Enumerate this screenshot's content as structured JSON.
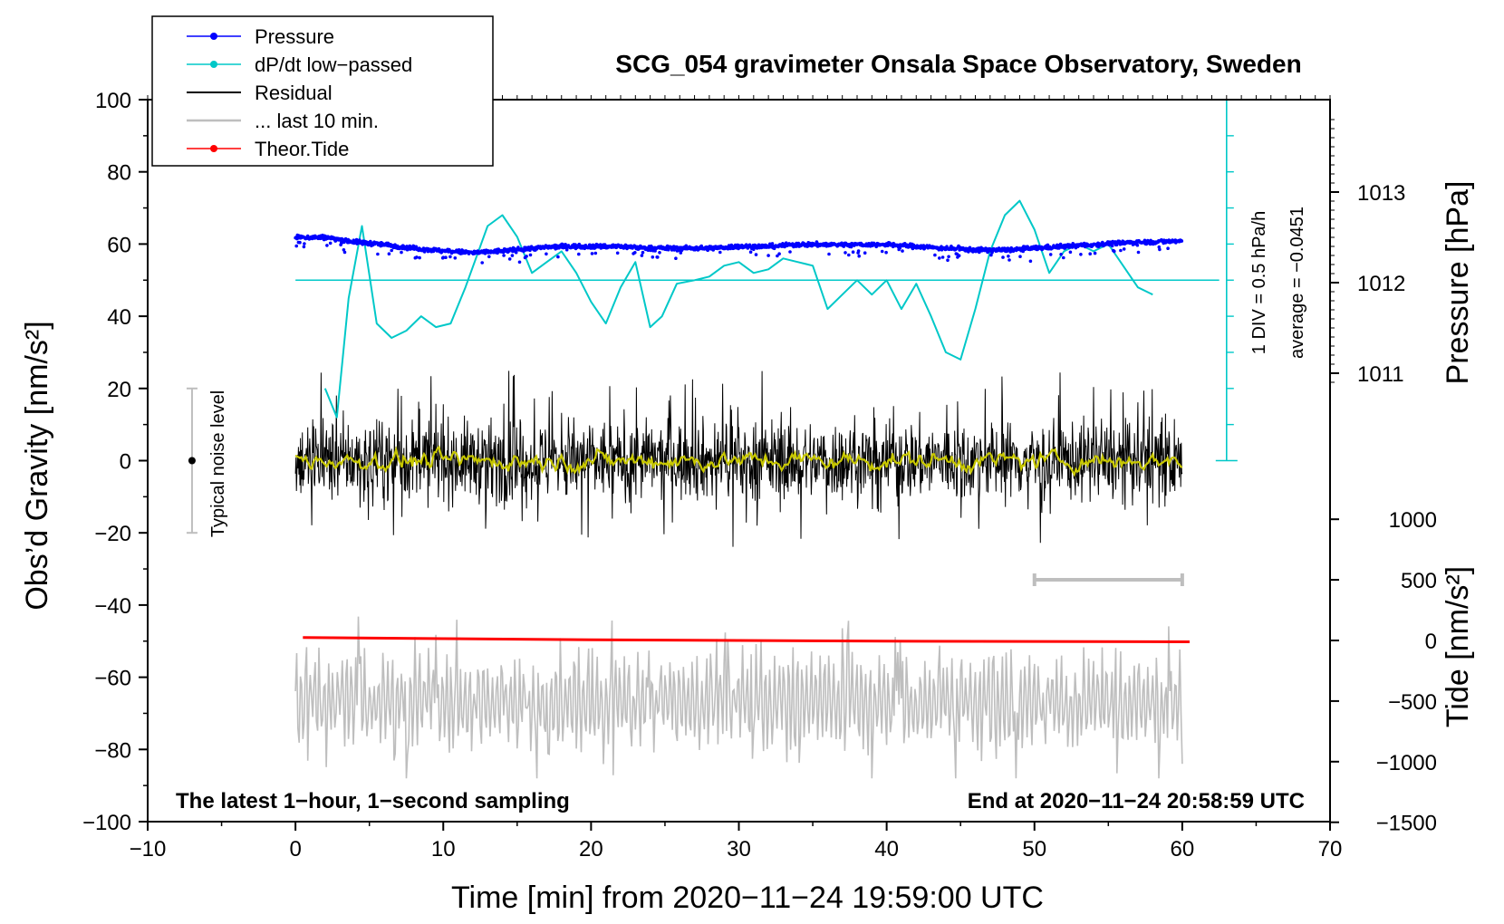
{
  "chart_data": {
    "type": "line",
    "title": "SCG_054 gravimeter Onsala Space Observatory, Sweden",
    "xlabel": "Time [min] from 2020−11−24 19:59:00 UTC",
    "xlim": [
      -10,
      70
    ],
    "x_ticks": [
      -10,
      0,
      10,
      20,
      30,
      40,
      50,
      60,
      70
    ],
    "x_tick_labels": [
      "−10",
      "0",
      "10",
      "20",
      "30",
      "40",
      "50",
      "60",
      "70"
    ],
    "left_axis": {
      "label": "Obs’d Gravity [nm/s²]",
      "ylim": [
        -100,
        100
      ],
      "ticks": [
        100,
        80,
        60,
        40,
        20,
        0,
        -20,
        -40,
        -60,
        -80,
        -100
      ],
      "tick_labels": [
        "100",
        "80",
        "60",
        "40",
        "20",
        "0",
        "−20",
        "−40",
        "−60",
        "−80",
        "−100"
      ]
    },
    "right_axis_pressure": {
      "label": "Pressure [hPa]",
      "ticks": [
        1013,
        1012,
        1011
      ],
      "tick_labels": [
        "1013",
        "1012",
        "1011"
      ]
    },
    "right_axis_tide": {
      "label": "Tide [nm/s²]",
      "ticks": [
        1000,
        500,
        0,
        -500,
        -1000,
        -1500
      ],
      "tick_labels": [
        "1000",
        "500",
        "0",
        "−500",
        "−1000",
        "−1500"
      ]
    },
    "legend": [
      {
        "label": "Pressure",
        "color": "#0000ff",
        "marker": true
      },
      {
        "label": "dP/dt low−passed",
        "color": "#00c8c8",
        "marker": true
      },
      {
        "label": "Residual",
        "color": "#000000",
        "marker": false
      },
      {
        "label": "... last 10 min.",
        "color": "#bebebe",
        "marker": false
      },
      {
        "label": "Theor.Tide",
        "color": "#ff0000",
        "marker": true
      }
    ],
    "noise_level": {
      "label": "Typical noise level",
      "x": -7,
      "center": 0,
      "half_range": 20
    },
    "dpdt_annotation": {
      "line1": "1 DIV = 0.5 hPa/h",
      "line2": "average = −0.0451"
    },
    "bottom_left_note": "The latest 1−hour, 1−second sampling",
    "bottom_right_note": "End at 2020−11−24 20:58:59 UTC",
    "series": [
      {
        "name": "Pressure",
        "unit": "hPa",
        "color": "#0000ff",
        "x": [
          0,
          2,
          4,
          6,
          8,
          10,
          12,
          14,
          16,
          18,
          20,
          22,
          24,
          26,
          28,
          30,
          32,
          34,
          36,
          38,
          40,
          42,
          44,
          46,
          48,
          50,
          52,
          54,
          56,
          58,
          60
        ],
        "y": [
          1012.5,
          1012.5,
          1012.45,
          1012.42,
          1012.38,
          1012.35,
          1012.33,
          1012.35,
          1012.38,
          1012.4,
          1012.4,
          1012.4,
          1012.38,
          1012.38,
          1012.38,
          1012.4,
          1012.4,
          1012.42,
          1012.42,
          1012.42,
          1012.42,
          1012.4,
          1012.38,
          1012.36,
          1012.36,
          1012.38,
          1012.4,
          1012.42,
          1012.44,
          1012.45,
          1012.46
        ]
      },
      {
        "name": "dP/dt low−passed",
        "unit": "nm/s² scale",
        "color": "#00c8c8",
        "x": [
          2,
          2.8,
          3.6,
          4.5,
          5.5,
          6.5,
          7.5,
          8.5,
          9.5,
          10.5,
          11.5,
          13,
          14,
          15,
          16,
          17,
          18,
          19,
          20,
          21,
          22,
          23,
          24,
          24.8,
          25.8,
          27,
          28,
          29,
          30,
          31,
          32,
          33,
          34,
          35,
          36,
          37,
          38,
          39,
          40,
          41,
          42,
          43,
          44,
          45,
          46,
          47,
          48,
          49,
          50,
          51,
          52,
          53,
          54,
          55,
          56,
          57,
          58
        ],
        "y": [
          20,
          12,
          45,
          65,
          38,
          34,
          36,
          40,
          37,
          38,
          48,
          65,
          68,
          62,
          52,
          55,
          58,
          52,
          44,
          38,
          48,
          55,
          37,
          40,
          49,
          50,
          51,
          54,
          55,
          52,
          53,
          56,
          55,
          54,
          42,
          46,
          50,
          46,
          50,
          42,
          49,
          40,
          30,
          28,
          42,
          58,
          68,
          72,
          64,
          52,
          58,
          60,
          58,
          60,
          54,
          48,
          46
        ]
      },
      {
        "name": "Residual",
        "unit": "nm/s²",
        "color": "#000000",
        "x_range": [
          0,
          60
        ],
        "typical_amplitude": 10,
        "max": 27,
        "min": -30
      },
      {
        "name": "Residual smoothed",
        "unit": "nm/s²",
        "color": "#c8c800",
        "x_range": [
          0,
          60
        ],
        "typical_amplitude": 2
      },
      {
        "name": "... last 10 min.",
        "unit": "nm/s²",
        "color": "#bebebe",
        "x_range": [
          0,
          60
        ],
        "center": -67,
        "typical_amplitude": 12,
        "max": -40,
        "min": -88
      },
      {
        "name": "Theor.Tide",
        "unit": "nm/s²",
        "color": "#ff0000",
        "x": [
          0.5,
          10,
          20,
          30,
          40,
          50,
          60.5
        ],
        "y": [
          -49.0,
          -49.3,
          -49.6,
          -49.8,
          -50.0,
          -50.1,
          -50.2
        ]
      }
    ],
    "last10_bar": {
      "x": [
        50,
        60
      ],
      "y": -33
    }
  }
}
